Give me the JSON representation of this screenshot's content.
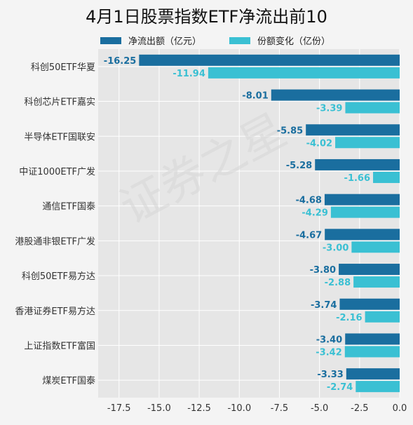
{
  "chart_data": {
    "type": "bar",
    "orientation": "horizontal",
    "title": "4月1日股票指数ETF净流出前10",
    "categories": [
      "科创50ETF华夏",
      "科创芯片ETF嘉实",
      "半导体ETF国联安",
      "中证1000ETF广发",
      "通信ETF国泰",
      "港股通非银ETF广发",
      "科创50ETF易方达",
      "香港证券ETF易方达",
      "上证指数ETF富国",
      "煤炭ETF国泰"
    ],
    "series": [
      {
        "name": "净流出额（亿元）",
        "color": "#1a6e9f",
        "values": [
          -16.25,
          -8.01,
          -5.85,
          -5.28,
          -4.68,
          -4.67,
          -3.8,
          -3.74,
          -3.4,
          -3.33
        ],
        "labels": [
          "-16.25",
          "-8.01",
          "-5.85",
          "-5.28",
          "-4.68",
          "-4.67",
          "-3.80",
          "-3.74",
          "-3.40",
          "-3.33"
        ]
      },
      {
        "name": "份额变化（亿份）",
        "color": "#3ac0d3",
        "values": [
          -11.94,
          -3.39,
          -4.02,
          -1.66,
          -4.29,
          -3.0,
          -2.88,
          -2.16,
          -3.42,
          -2.74
        ],
        "labels": [
          "-11.94",
          "-3.39",
          "-4.02",
          "-1.66",
          "-4.29",
          "-3.00",
          "-2.88",
          "-2.16",
          "-3.42",
          "-2.74"
        ]
      }
    ],
    "xlim": [
      -18.8,
      0
    ],
    "xticks": [
      -17.5,
      -15.0,
      -12.5,
      -10.0,
      -7.5,
      -5.0,
      -2.5,
      0.0
    ],
    "xtick_labels": [
      "-17.5",
      "-15.0",
      "-12.5",
      "-10.0",
      "-7.5",
      "-5.0",
      "-2.5",
      "0.0"
    ],
    "grid": true,
    "legend_position": "top",
    "background": "#e6e6e6",
    "watermark": "证券之星"
  }
}
